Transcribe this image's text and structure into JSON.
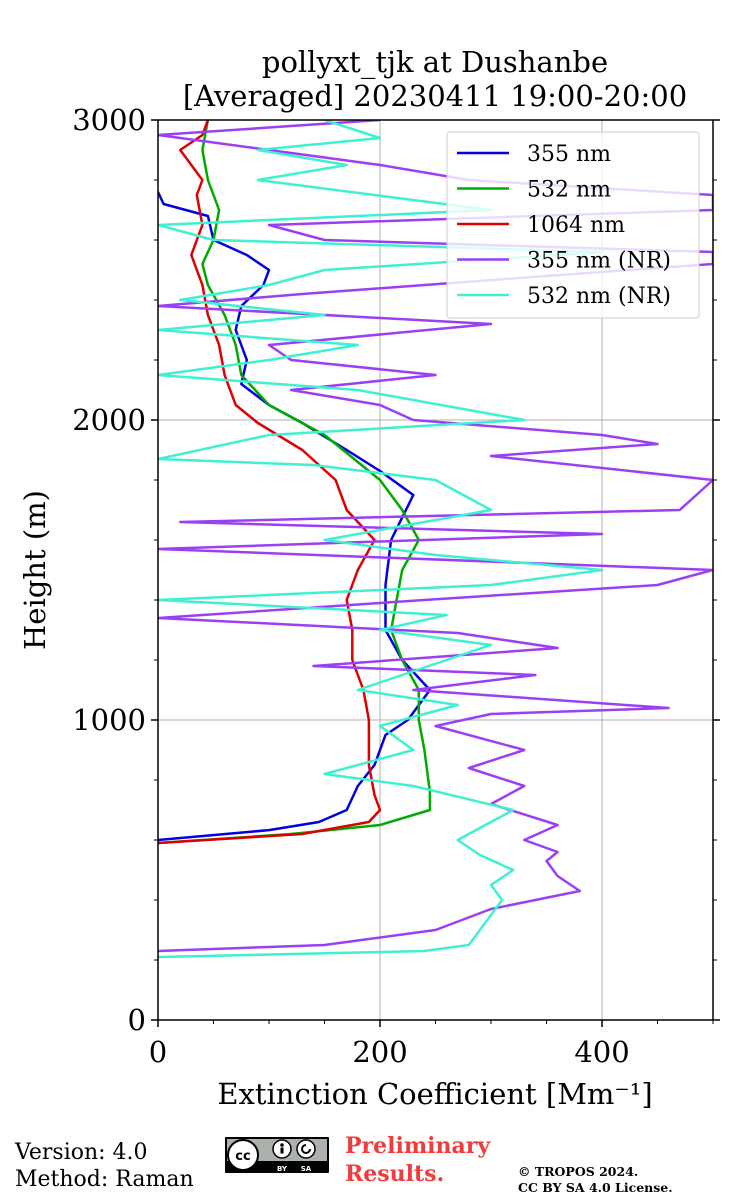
{
  "chart_data": {
    "type": "line",
    "title": "pollyxt_tjk at Dushanbe",
    "subtitle": "[Averaged] 20230411 19:00-20:00",
    "xlabel": "Extinction Coefficient [Mm⁻¹]",
    "ylabel": "Height (m)",
    "xlim": [
      0,
      500
    ],
    "ylim": [
      0,
      3000
    ],
    "xticks": [
      0,
      200,
      400
    ],
    "yticks": [
      0,
      1000,
      2000,
      3000
    ],
    "grid": true,
    "legend_position": "top-right",
    "series": [
      {
        "name": "355 nm",
        "color": "#0000e0",
        "points": [
          [
            0,
            600
          ],
          [
            100,
            633
          ],
          [
            145,
            660
          ],
          [
            170,
            700
          ],
          [
            180,
            780
          ],
          [
            195,
            850
          ],
          [
            205,
            950
          ],
          [
            225,
            1000
          ],
          [
            245,
            1100
          ],
          [
            220,
            1200
          ],
          [
            205,
            1300
          ],
          [
            205,
            1450
          ],
          [
            210,
            1600
          ],
          [
            230,
            1750
          ],
          [
            200,
            1830
          ],
          [
            170,
            1900
          ],
          [
            130,
            1990
          ],
          [
            100,
            2050
          ],
          [
            75,
            2120
          ],
          [
            80,
            2200
          ],
          [
            70,
            2300
          ],
          [
            75,
            2380
          ],
          [
            95,
            2450
          ],
          [
            100,
            2500
          ],
          [
            80,
            2550
          ],
          [
            50,
            2600
          ],
          [
            45,
            2680
          ],
          [
            5,
            2720
          ],
          [
            0,
            2760
          ]
        ]
      },
      {
        "name": "532 nm",
        "color": "#00aa00",
        "points": [
          [
            0,
            590
          ],
          [
            120,
            620
          ],
          [
            200,
            650
          ],
          [
            245,
            700
          ],
          [
            245,
            760
          ],
          [
            240,
            900
          ],
          [
            235,
            1000
          ],
          [
            235,
            1100
          ],
          [
            220,
            1200
          ],
          [
            210,
            1300
          ],
          [
            215,
            1400
          ],
          [
            220,
            1500
          ],
          [
            235,
            1600
          ],
          [
            220,
            1700
          ],
          [
            200,
            1800
          ],
          [
            150,
            1950
          ],
          [
            100,
            2050
          ],
          [
            75,
            2150
          ],
          [
            70,
            2250
          ],
          [
            60,
            2350
          ],
          [
            45,
            2450
          ],
          [
            40,
            2520
          ],
          [
            50,
            2600
          ],
          [
            55,
            2700
          ],
          [
            45,
            2800
          ],
          [
            40,
            2900
          ],
          [
            45,
            3000
          ]
        ]
      },
      {
        "name": "1064 nm",
        "color": "#dd0000",
        "points": [
          [
            0,
            590
          ],
          [
            130,
            620
          ],
          [
            190,
            660
          ],
          [
            200,
            700
          ],
          [
            195,
            750
          ],
          [
            190,
            850
          ],
          [
            190,
            1000
          ],
          [
            185,
            1100
          ],
          [
            175,
            1200
          ],
          [
            175,
            1300
          ],
          [
            170,
            1400
          ],
          [
            180,
            1500
          ],
          [
            195,
            1600
          ],
          [
            170,
            1700
          ],
          [
            160,
            1800
          ],
          [
            130,
            1900
          ],
          [
            90,
            1990
          ],
          [
            70,
            2050
          ],
          [
            60,
            2150
          ],
          [
            55,
            2250
          ],
          [
            45,
            2350
          ],
          [
            40,
            2450
          ],
          [
            30,
            2550
          ],
          [
            40,
            2650
          ],
          [
            35,
            2750
          ],
          [
            40,
            2800
          ],
          [
            20,
            2900
          ],
          [
            40,
            2950
          ],
          [
            45,
            3000
          ]
        ]
      },
      {
        "name": "355 nm (NR)",
        "color": "#9b3ff5",
        "points": [
          [
            0,
            230
          ],
          [
            150,
            250
          ],
          [
            250,
            300
          ],
          [
            300,
            370
          ],
          [
            380,
            430
          ],
          [
            360,
            480
          ],
          [
            350,
            530
          ],
          [
            360,
            560
          ],
          [
            330,
            600
          ],
          [
            360,
            650
          ],
          [
            300,
            720
          ],
          [
            330,
            780
          ],
          [
            280,
            840
          ],
          [
            330,
            900
          ],
          [
            250,
            980
          ],
          [
            300,
            1020
          ],
          [
            460,
            1040
          ],
          [
            230,
            1100
          ],
          [
            340,
            1150
          ],
          [
            140,
            1180
          ],
          [
            360,
            1240
          ],
          [
            270,
            1290
          ],
          [
            0,
            1340
          ],
          [
            240,
            1400
          ],
          [
            450,
            1450
          ],
          [
            500,
            1500
          ],
          [
            0,
            1570
          ],
          [
            400,
            1620
          ],
          [
            20,
            1660
          ],
          [
            470,
            1700
          ],
          [
            500,
            1800
          ],
          [
            300,
            1880
          ],
          [
            450,
            1920
          ],
          [
            400,
            1950
          ],
          [
            230,
            2000
          ],
          [
            200,
            2050
          ],
          [
            120,
            2100
          ],
          [
            250,
            2150
          ],
          [
            120,
            2200
          ],
          [
            100,
            2250
          ],
          [
            300,
            2320
          ],
          [
            0,
            2380
          ],
          [
            130,
            2420
          ],
          [
            350,
            2480
          ],
          [
            500,
            2520
          ],
          [
            500,
            2560
          ],
          [
            150,
            2600
          ],
          [
            100,
            2650
          ],
          [
            500,
            2700
          ],
          [
            500,
            2750
          ],
          [
            280,
            2800
          ],
          [
            200,
            2850
          ],
          [
            100,
            2900
          ],
          [
            0,
            2950
          ],
          [
            200,
            3000
          ]
        ]
      },
      {
        "name": "532 nm (NR)",
        "color": "#40f0d0",
        "points": [
          [
            0,
            210
          ],
          [
            240,
            230
          ],
          [
            280,
            250
          ],
          [
            290,
            300
          ],
          [
            300,
            350
          ],
          [
            310,
            400
          ],
          [
            300,
            450
          ],
          [
            320,
            500
          ],
          [
            290,
            550
          ],
          [
            270,
            600
          ],
          [
            320,
            700
          ],
          [
            230,
            780
          ],
          [
            150,
            820
          ],
          [
            230,
            900
          ],
          [
            200,
            980
          ],
          [
            270,
            1050
          ],
          [
            180,
            1100
          ],
          [
            220,
            1150
          ],
          [
            300,
            1250
          ],
          [
            200,
            1300
          ],
          [
            260,
            1350
          ],
          [
            0,
            1400
          ],
          [
            300,
            1450
          ],
          [
            400,
            1500
          ],
          [
            250,
            1550
          ],
          [
            150,
            1600
          ],
          [
            300,
            1700
          ],
          [
            250,
            1800
          ],
          [
            140,
            1850
          ],
          [
            0,
            1870
          ],
          [
            100,
            1950
          ],
          [
            330,
            2000
          ],
          [
            180,
            2100
          ],
          [
            0,
            2150
          ],
          [
            100,
            2200
          ],
          [
            180,
            2250
          ],
          [
            0,
            2300
          ],
          [
            150,
            2350
          ],
          [
            20,
            2400
          ],
          [
            100,
            2450
          ],
          [
            150,
            2500
          ],
          [
            400,
            2560
          ],
          [
            50,
            2600
          ],
          [
            0,
            2650
          ],
          [
            300,
            2700
          ],
          [
            90,
            2800
          ],
          [
            170,
            2850
          ],
          [
            90,
            2900
          ],
          [
            200,
            2940
          ],
          [
            150,
            3000
          ]
        ]
      }
    ]
  },
  "footer": {
    "version": "Version: 4.0",
    "method": "Method: Raman",
    "preliminary_line1": "Preliminary",
    "preliminary_line2": "Results.",
    "copyright_line1": "© TROPOS 2024.",
    "copyright_line2": "CC BY SA 4.0 License.",
    "cc_badge": "cc by sa"
  }
}
